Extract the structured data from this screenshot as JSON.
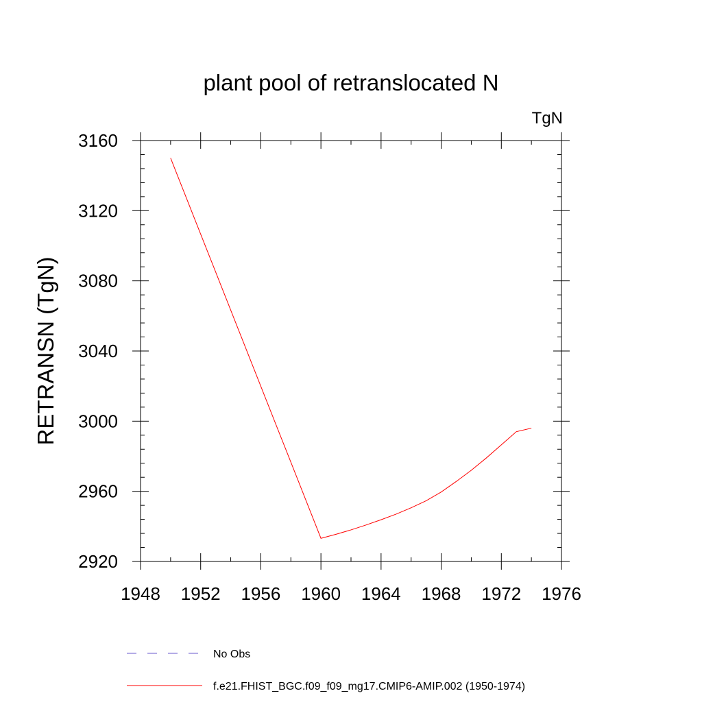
{
  "chart_data": {
    "type": "line",
    "title": "plant pool of retranslocated N",
    "units": "TgN",
    "ylabel": "RETRANSN  (TgN)",
    "xlabel": "",
    "xlim": [
      1948,
      1976
    ],
    "ylim": [
      2920,
      3160
    ],
    "x_ticks": [
      1948,
      1952,
      1956,
      1960,
      1964,
      1968,
      1972,
      1976
    ],
    "x_tick_labels": [
      "1948",
      "1952",
      "1956",
      "1960",
      "1964",
      "1968",
      "1972",
      "1976"
    ],
    "y_ticks": [
      2920,
      2960,
      3000,
      3040,
      3080,
      3120,
      3160
    ],
    "y_tick_labels": [
      "2920",
      "2960",
      "3000",
      "3040",
      "3080",
      "3120",
      "3160"
    ],
    "grid": false,
    "legend_position": "bottom",
    "series": [
      {
        "name": "No Obs",
        "color": "#6a5acd",
        "dash": "dashed",
        "x": [],
        "y": []
      },
      {
        "name": "f.e21.FHIST_BGC.f09_f09_mg17.CMIP6-AMIP.002 (1950-1974)",
        "color": "#ff0000",
        "dash": "solid",
        "x": [
          1950,
          1951,
          1952,
          1953,
          1954,
          1955,
          1956,
          1957,
          1958,
          1959,
          1960,
          1961,
          1962,
          1963,
          1964,
          1965,
          1966,
          1967,
          1968,
          1969,
          1970,
          1971,
          1972,
          1973,
          1974
        ],
        "y": [
          3150,
          3128.3,
          3106.6,
          3085.0,
          3063.3,
          3041.6,
          3019.9,
          2998.2,
          2976.6,
          2954.9,
          2933.2,
          2935.5,
          2938.0,
          2940.8,
          2943.8,
          2947.0,
          2950.6,
          2954.6,
          2959.6,
          2965.6,
          2972.0,
          2979.0,
          2986.5,
          2994.0,
          2996.0
        ]
      }
    ]
  }
}
